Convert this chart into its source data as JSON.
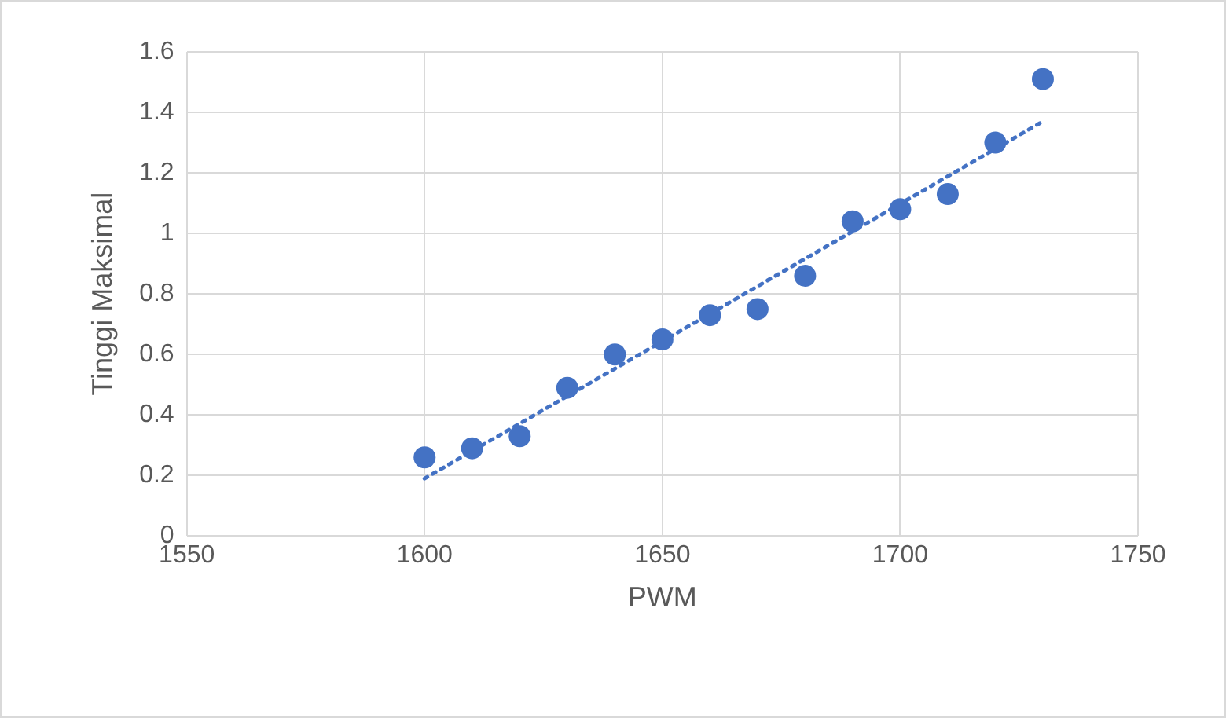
{
  "chart_data": {
    "type": "scatter",
    "xlabel": "PWM",
    "ylabel": "Tinggi Maksimal",
    "xlim": [
      1550,
      1750
    ],
    "xticks": [
      1550,
      1600,
      1650,
      1700,
      1750
    ],
    "ylim": [
      0,
      1.6
    ],
    "yticks": [
      0,
      0.2,
      0.4,
      0.6,
      0.8,
      1,
      1.2,
      1.4,
      1.6
    ],
    "grid": true,
    "legend": false,
    "marker": "circle",
    "series": [
      {
        "color": "#4472c4",
        "x": [
          1600,
          1610,
          1620,
          1630,
          1640,
          1650,
          1660,
          1670,
          1680,
          1690,
          1700,
          1710,
          1720,
          1730
        ],
        "values": [
          0.26,
          0.29,
          0.33,
          0.49,
          0.6,
          0.65,
          0.73,
          0.75,
          0.86,
          1.04,
          1.08,
          1.13,
          1.3,
          1.51
        ]
      },
      {
        "type": "line",
        "color": "#4472c4",
        "line_style": "dotted",
        "marker": "none",
        "x": [
          1600,
          1730
        ],
        "values": [
          0.19,
          1.37
        ]
      }
    ]
  }
}
